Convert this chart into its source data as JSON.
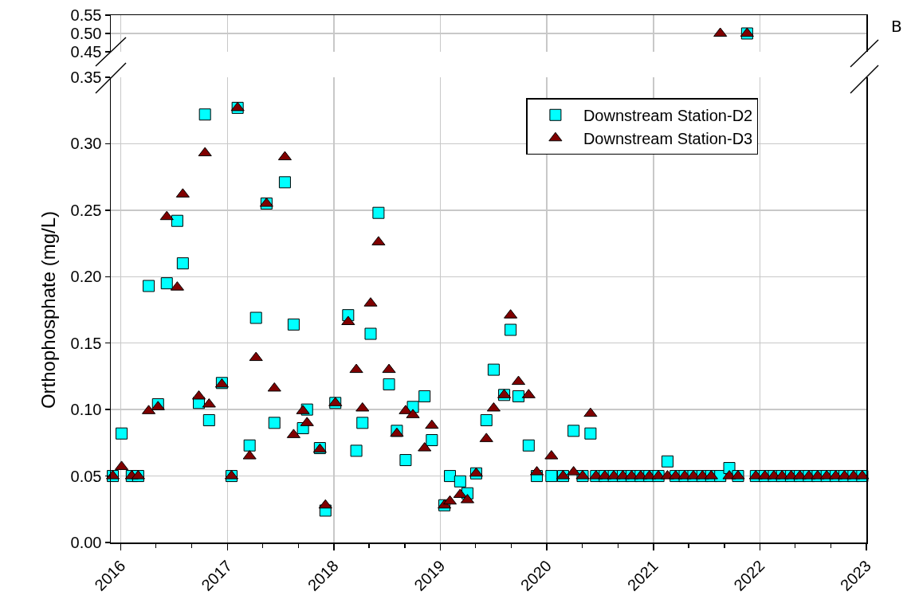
{
  "chart_data": [
    {
      "type": "scatter",
      "annotations": [
        "B"
      ],
      "xlim": [
        "2015-11-28",
        "2023-01-01"
      ],
      "ylim": [
        0.45,
        0.55
      ],
      "yticks": [
        {
          "value": 0.45,
          "label": "0.45"
        },
        {
          "value": 0.5,
          "label": "0.50"
        },
        {
          "value": 0.55,
          "label": "0.55"
        }
      ],
      "xticks": [
        {
          "value": "2016-01-01",
          "label": null
        },
        {
          "value": "2017-01-01",
          "label": null
        },
        {
          "value": "2018-01-01",
          "label": null
        },
        {
          "value": "2019-01-01",
          "label": null
        },
        {
          "value": "2020-01-01",
          "label": null
        },
        {
          "value": "2021-01-01",
          "label": null
        },
        {
          "value": "2022-01-01",
          "label": null
        },
        {
          "value": "2023-01-01",
          "label": null
        }
      ],
      "tick_labels": "y",
      "grid": true,
      "legend": false,
      "series": [
        {
          "color": "#00ffff",
          "marker": "square",
          "x": [
            "2021-11-18"
          ],
          "values": [
            0.5
          ]
        },
        {
          "color": "#800000",
          "marker": "triangle",
          "x": [
            "2021-08-18",
            "2021-11-18"
          ],
          "values": [
            0.5,
            0.5
          ]
        }
      ]
    },
    {
      "type": "scatter",
      "ylabel": "Orthophosphate (mg/L)",
      "xlim": [
        "2015-11-28",
        "2023-01-01"
      ],
      "ylim": [
        0,
        0.35
      ],
      "yticks": [
        {
          "value": 0,
          "label": "0.00"
        },
        {
          "value": 0.05,
          "label": "0.05"
        },
        {
          "value": 0.1,
          "label": "0.10"
        },
        {
          "value": 0.15,
          "label": "0.15"
        },
        {
          "value": 0.2,
          "label": "0.20"
        },
        {
          "value": 0.25,
          "label": "0.25"
        },
        {
          "value": 0.3,
          "label": "0.30"
        },
        {
          "value": 0.35,
          "label": "0.35"
        }
      ],
      "xticks": [
        {
          "value": "2016-01-01",
          "label": "2016"
        },
        {
          "value": "2016-05-01",
          "label": null
        },
        {
          "value": "2016-09-01",
          "label": null
        },
        {
          "value": "2017-01-01",
          "label": "2017"
        },
        {
          "value": "2017-05-01",
          "label": null
        },
        {
          "value": "2017-09-01",
          "label": null
        },
        {
          "value": "2018-01-01",
          "label": "2018"
        },
        {
          "value": "2018-05-01",
          "label": null
        },
        {
          "value": "2018-09-01",
          "label": null
        },
        {
          "value": "2019-01-01",
          "label": "2019"
        },
        {
          "value": "2019-05-01",
          "label": null
        },
        {
          "value": "2019-09-01",
          "label": null
        },
        {
          "value": "2020-01-01",
          "label": "2020"
        },
        {
          "value": "2020-05-01",
          "label": null
        },
        {
          "value": "2020-09-01",
          "label": null
        },
        {
          "value": "2021-01-01",
          "label": "2021"
        },
        {
          "value": "2021-05-01",
          "label": null
        },
        {
          "value": "2021-09-01",
          "label": null
        },
        {
          "value": "2022-01-01",
          "label": "2022"
        },
        {
          "value": "2022-05-01",
          "label": null
        },
        {
          "value": "2022-09-01",
          "label": null
        },
        {
          "value": "2023-01-01",
          "label": "2023"
        }
      ],
      "grid": true,
      "legend": "top right",
      "series": [
        {
          "name": "Downstream Station-D2",
          "color": "#00ffff",
          "marker": "square",
          "x": [
            "2015-12-05",
            "2016-01-04",
            "2016-02-08",
            "2016-03-01",
            "2016-04-06",
            "2016-05-08",
            "2016-06-07",
            "2016-07-13",
            "2016-08-01",
            "2016-09-25",
            "2016-10-16",
            "2016-10-30",
            "2016-12-13",
            "2017-01-15",
            "2017-02-05",
            "2017-03-18",
            "2017-04-09",
            "2017-05-15",
            "2017-06-11",
            "2017-07-17",
            "2017-08-16",
            "2017-09-17",
            "2017-10-01",
            "2017-11-14",
            "2017-12-03",
            "2018-01-06",
            "2018-02-19",
            "2018-03-19",
            "2018-04-09",
            "2018-05-07",
            "2018-06-03",
            "2018-07-09",
            "2018-08-05",
            "2018-09-04",
            "2018-09-29",
            "2018-11-08",
            "2018-12-03",
            "2019-01-15",
            "2019-02-03",
            "2019-03-10",
            "2019-04-04",
            "2019-05-04",
            "2019-06-08",
            "2019-07-03",
            "2019-08-08",
            "2019-08-30",
            "2019-09-26",
            "2019-10-31",
            "2019-11-28",
            "2020-01-17",
            "2020-02-26",
            "2020-04-02",
            "2020-05-03",
            "2020-05-30",
            "2020-06-18",
            "2020-07-18",
            "2020-08-18",
            "2020-09-18",
            "2020-10-18",
            "2020-11-18",
            "2020-12-18",
            "2021-01-18",
            "2021-02-18",
            "2021-03-18",
            "2021-04-18",
            "2021-05-18",
            "2021-06-18",
            "2021-07-18",
            "2021-08-18",
            "2021-09-18",
            "2021-10-18",
            "2021-12-18",
            "2022-01-18",
            "2022-02-18",
            "2022-03-18",
            "2022-04-18",
            "2022-05-18",
            "2022-06-18",
            "2022-07-18",
            "2022-08-18",
            "2022-09-18",
            "2022-10-18",
            "2022-11-18",
            "2022-12-18"
          ],
          "values": [
            0.05,
            0.082,
            0.05,
            0.05,
            0.193,
            0.104,
            0.195,
            0.242,
            0.21,
            0.105,
            0.322,
            0.092,
            0.12,
            0.05,
            0.327,
            0.073,
            0.169,
            0.255,
            0.09,
            0.271,
            0.164,
            0.086,
            0.1,
            0.071,
            0.024,
            0.105,
            0.171,
            0.069,
            0.09,
            0.157,
            0.248,
            0.119,
            0.084,
            0.062,
            0.102,
            0.11,
            0.077,
            0.028,
            0.05,
            0.046,
            0.037,
            0.052,
            0.092,
            0.13,
            0.111,
            0.16,
            0.11,
            0.073,
            0.05,
            0.05,
            0.05,
            0.084,
            0.05,
            0.082,
            0.05,
            0.05,
            0.05,
            0.05,
            0.05,
            0.05,
            0.05,
            0.05,
            0.061,
            0.05,
            0.05,
            0.05,
            0.05,
            0.05,
            0.05,
            0.056,
            0.05,
            0.05,
            0.05,
            0.05,
            0.05,
            0.05,
            0.05,
            0.05,
            0.05,
            0.05,
            0.05,
            0.05,
            0.05,
            0.05
          ]
        },
        {
          "name": "Downstream Station-D3",
          "color": "#800000",
          "marker": "triangle",
          "x": [
            "2015-12-05",
            "2016-01-04",
            "2016-02-08",
            "2016-03-01",
            "2016-04-06",
            "2016-05-08",
            "2016-06-07",
            "2016-07-13",
            "2016-08-01",
            "2016-09-25",
            "2016-10-16",
            "2016-10-30",
            "2016-12-13",
            "2017-01-15",
            "2017-02-05",
            "2017-03-18",
            "2017-04-09",
            "2017-05-15",
            "2017-06-11",
            "2017-07-17",
            "2017-08-16",
            "2017-09-17",
            "2017-10-01",
            "2017-11-14",
            "2017-12-03",
            "2018-01-06",
            "2018-02-19",
            "2018-03-19",
            "2018-04-09",
            "2018-05-07",
            "2018-06-03",
            "2018-07-09",
            "2018-08-05",
            "2018-09-04",
            "2018-09-29",
            "2018-11-08",
            "2018-12-03",
            "2019-01-15",
            "2019-02-03",
            "2019-03-10",
            "2019-04-04",
            "2019-05-04",
            "2019-06-08",
            "2019-07-03",
            "2019-08-08",
            "2019-08-30",
            "2019-09-26",
            "2019-10-31",
            "2019-11-28",
            "2020-01-17",
            "2020-02-26",
            "2020-04-02",
            "2020-05-03",
            "2020-05-30",
            "2020-06-18",
            "2020-07-18",
            "2020-08-18",
            "2020-09-18",
            "2020-10-18",
            "2020-11-18",
            "2020-12-18",
            "2021-01-18",
            "2021-02-18",
            "2021-03-18",
            "2021-04-18",
            "2021-05-18",
            "2021-06-18",
            "2021-07-18",
            "2021-09-18",
            "2021-10-18",
            "2021-12-18",
            "2022-01-18",
            "2022-02-18",
            "2022-03-18",
            "2022-04-18",
            "2022-05-18",
            "2022-06-18",
            "2022-07-18",
            "2022-08-18",
            "2022-09-18",
            "2022-10-18",
            "2022-11-18",
            "2022-12-18"
          ],
          "values": [
            0.05,
            0.057,
            0.05,
            0.05,
            0.099,
            0.102,
            0.245,
            0.192,
            0.262,
            0.11,
            0.293,
            0.104,
            0.119,
            0.05,
            0.327,
            0.065,
            0.139,
            0.255,
            0.116,
            0.29,
            0.081,
            0.099,
            0.09,
            0.07,
            0.028,
            0.105,
            0.166,
            0.13,
            0.101,
            0.18,
            0.226,
            0.13,
            0.082,
            0.099,
            0.096,
            0.071,
            0.088,
            0.028,
            0.031,
            0.036,
            0.032,
            0.052,
            0.078,
            0.101,
            0.111,
            0.171,
            0.121,
            0.111,
            0.053,
            0.065,
            0.05,
            0.053,
            0.05,
            0.097,
            0.05,
            0.05,
            0.05,
            0.05,
            0.05,
            0.05,
            0.05,
            0.05,
            0.05,
            0.05,
            0.05,
            0.05,
            0.05,
            0.05,
            0.05,
            0.05,
            0.05,
            0.05,
            0.05,
            0.05,
            0.05,
            0.05,
            0.05,
            0.05,
            0.05,
            0.05,
            0.05,
            0.05,
            0.05
          ]
        }
      ]
    }
  ]
}
